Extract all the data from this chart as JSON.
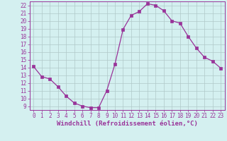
{
  "x": [
    0,
    1,
    2,
    3,
    4,
    5,
    6,
    7,
    8,
    9,
    10,
    11,
    12,
    13,
    14,
    15,
    16,
    17,
    18,
    19,
    20,
    21,
    22,
    23
  ],
  "y": [
    14.1,
    12.8,
    12.5,
    11.5,
    10.3,
    9.4,
    9.0,
    8.8,
    8.8,
    11.0,
    14.4,
    18.9,
    20.7,
    21.2,
    22.2,
    22.0,
    21.3,
    20.0,
    19.7,
    18.0,
    16.5,
    15.3,
    14.8,
    13.9
  ],
  "line_color": "#993399",
  "marker": "s",
  "markersize": 2.5,
  "linewidth": 0.9,
  "background_color": "#d4f0f0",
  "grid_color": "#b0c8c8",
  "xlabel": "Windchill (Refroidissement éolien,°C)",
  "xlabel_color": "#993399",
  "yticks": [
    9,
    10,
    11,
    12,
    13,
    14,
    15,
    16,
    17,
    18,
    19,
    20,
    21,
    22
  ],
  "ylim": [
    8.5,
    22.5
  ],
  "xlim": [
    -0.5,
    23.5
  ],
  "xticks": [
    0,
    1,
    2,
    3,
    4,
    5,
    6,
    7,
    8,
    9,
    10,
    11,
    12,
    13,
    14,
    15,
    16,
    17,
    18,
    19,
    20,
    21,
    22,
    23
  ],
  "tick_fontsize": 5.5,
  "xlabel_fontsize": 6.5
}
